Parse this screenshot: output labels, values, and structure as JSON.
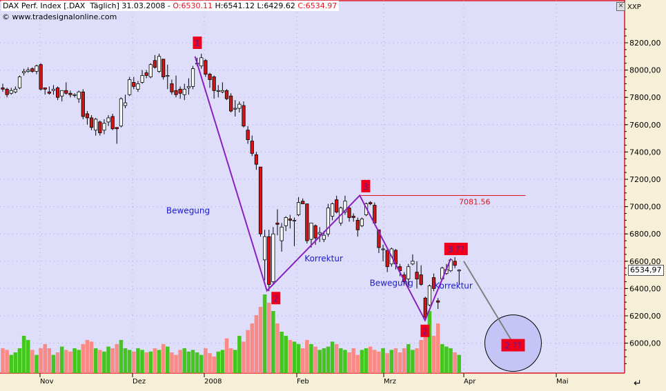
{
  "header": {
    "instrument": "DAX Perf. Index [.DAX  Täglich] 31.03.2008 - ",
    "open": "O:6530.11",
    "high_low": " H:6541.12 L:6429.62 ",
    "close": "C:6534.97",
    "copyright": "© www.tradesignalonline.com"
  },
  "axis_label": "XXP",
  "last_price_tag": "6534,97",
  "colors": {
    "plot_bg": "#dedefa",
    "axis_bg": "#f6f0d8",
    "up_candle": "#ffffff",
    "down_candle": "#d41414",
    "up_volume": "#44c51f",
    "down_volume": "#f98a86",
    "wave_line": "#8a1fc0",
    "resistance_line": "#e0141e",
    "label_box": "#f0001c"
  },
  "chart_data": {
    "type": "candlestick",
    "y_ticks": [
      "8200,00",
      "8000,00",
      "7800,00",
      "7600,00",
      "7400,00",
      "7200,00",
      "7000,00",
      "6800,00",
      "6600,00",
      "6400,00",
      "6200,00",
      "6000,00"
    ],
    "y_tick_values": [
      8200,
      8000,
      7800,
      7600,
      7400,
      7200,
      7000,
      6800,
      6600,
      6400,
      6200,
      6000
    ],
    "x_ticks": [
      {
        "label": "Nov",
        "date": "2007-11-01"
      },
      {
        "label": "Dez",
        "date": "2007-12-01"
      },
      {
        "label": "2008",
        "date": "2008-01-01"
      },
      {
        "label": "Feb",
        "date": "2008-02-01"
      },
      {
        "label": "Mrz",
        "date": "2008-03-01"
      },
      {
        "label": "Apr",
        "date": "2008-04-01"
      },
      {
        "label": "Mai",
        "date": "2008-05-01"
      }
    ],
    "last_date": "2008-03-31",
    "grid": true,
    "ohlc": [
      [
        7870,
        7900,
        7840,
        7860
      ],
      [
        7860,
        7870,
        7800,
        7820
      ],
      [
        7830,
        7870,
        7820,
        7850
      ],
      [
        7840,
        7880,
        7830,
        7860
      ],
      [
        7870,
        7960,
        7860,
        7950
      ],
      [
        7980,
        8010,
        7960,
        7990
      ],
      [
        7990,
        8020,
        7980,
        8000
      ],
      [
        8010,
        8020,
        7980,
        7990
      ],
      [
        7990,
        8040,
        7970,
        8030
      ],
      [
        8040,
        8050,
        7850,
        7860
      ],
      [
        7870,
        7870,
        7820,
        7860
      ],
      [
        7840,
        7880,
        7820,
        7830
      ],
      [
        7850,
        7890,
        7820,
        7860
      ],
      [
        7870,
        7880,
        7780,
        7800
      ],
      [
        7810,
        7850,
        7770,
        7850
      ],
      [
        7850,
        7910,
        7820,
        7830
      ],
      [
        7830,
        7850,
        7800,
        7820
      ],
      [
        7820,
        7830,
        7800,
        7820
      ],
      [
        7790,
        7850,
        7760,
        7840
      ],
      [
        7840,
        7860,
        7640,
        7660
      ],
      [
        7680,
        7700,
        7600,
        7650
      ],
      [
        7650,
        7670,
        7560,
        7580
      ],
      [
        7560,
        7650,
        7520,
        7640
      ],
      [
        7620,
        7630,
        7520,
        7540
      ],
      [
        7560,
        7640,
        7530,
        7610
      ],
      [
        7620,
        7670,
        7590,
        7650
      ],
      [
        7660,
        7680,
        7560,
        7570
      ],
      [
        7580,
        7580,
        7460,
        7570
      ],
      [
        7590,
        7800,
        7580,
        7790
      ],
      [
        7740,
        7820,
        7720,
        7760
      ],
      [
        7820,
        7950,
        7810,
        7930
      ],
      [
        7910,
        7950,
        7860,
        7880
      ],
      [
        7860,
        7920,
        7840,
        7900
      ],
      [
        7910,
        8000,
        7900,
        7960
      ],
      [
        7980,
        8000,
        7940,
        7960
      ],
      [
        7950,
        8050,
        7940,
        8040
      ],
      [
        8070,
        8110,
        8010,
        8020
      ],
      [
        7990,
        8120,
        7980,
        8100
      ],
      [
        8080,
        8080,
        7930,
        7950
      ],
      [
        7960,
        8040,
        7860,
        7960
      ],
      [
        7900,
        7930,
        7820,
        7840
      ],
      [
        7850,
        7960,
        7800,
        7820
      ],
      [
        7860,
        7880,
        7790,
        7830
      ],
      [
        7820,
        7900,
        7780,
        7860
      ],
      [
        7870,
        7940,
        7820,
        7880
      ],
      [
        7880,
        8030,
        7860,
        8010
      ],
      [
        8050,
        8090,
        8030,
        8050
      ],
      [
        8030,
        8120,
        8010,
        8090
      ],
      [
        8070,
        8080,
        7950,
        7970
      ],
      [
        7970,
        7980,
        7870,
        7930
      ],
      [
        7950,
        7960,
        7790,
        7850
      ],
      [
        7850,
        7890,
        7800,
        7850
      ],
      [
        7840,
        7910,
        7830,
        7850
      ],
      [
        7850,
        7860,
        7780,
        7790
      ],
      [
        7810,
        7830,
        7690,
        7700
      ],
      [
        7720,
        7780,
        7660,
        7720
      ],
      [
        7720,
        7770,
        7690,
        7750
      ],
      [
        7740,
        7770,
        7580,
        7590
      ],
      [
        7560,
        7590,
        7460,
        7490
      ],
      [
        7480,
        7520,
        7370,
        7390
      ],
      [
        7380,
        7400,
        7270,
        7310
      ],
      [
        7290,
        7290,
        6780,
        6800
      ],
      [
        6610,
        6830,
        6460,
        6780
      ],
      [
        6780,
        6830,
        6380,
        6430
      ],
      [
        6450,
        6850,
        6430,
        6800
      ],
      [
        6880,
        6980,
        6790,
        6870
      ],
      [
        6750,
        6880,
        6670,
        6850
      ],
      [
        6860,
        6930,
        6820,
        6920
      ],
      [
        6910,
        6940,
        6840,
        6900
      ],
      [
        6900,
        6920,
        6710,
        6900
      ],
      [
        6940,
        7070,
        6930,
        7030
      ],
      [
        7040,
        7060,
        7020,
        7020
      ],
      [
        7020,
        7020,
        6730,
        6750
      ],
      [
        6760,
        6880,
        6700,
        6880
      ],
      [
        6860,
        6870,
        6720,
        6770
      ],
      [
        6800,
        6850,
        6740,
        6810
      ],
      [
        6760,
        6820,
        6740,
        6790
      ],
      [
        6800,
        7020,
        6780,
        6990
      ],
      [
        6930,
        7030,
        6900,
        7020
      ],
      [
        7050,
        7080,
        6950,
        6960
      ],
      [
        6880,
        7000,
        6860,
        6990
      ],
      [
        6960,
        7080,
        6940,
        7040
      ],
      [
        6990,
        7000,
        6890,
        6920
      ],
      [
        6930,
        6950,
        6890,
        6920
      ],
      [
        6900,
        6920,
        6780,
        6830
      ],
      [
        6860,
        6920,
        6850,
        6910
      ],
      [
        6940,
        7030,
        6930,
        7020
      ],
      [
        7030,
        7040,
        7010,
        7020
      ],
      [
        7010,
        7030,
        6870,
        6880
      ],
      [
        6830,
        6830,
        6660,
        6700
      ],
      [
        6690,
        6720,
        6600,
        6690
      ],
      [
        6680,
        6680,
        6520,
        6560
      ],
      [
        6580,
        6700,
        6560,
        6690
      ],
      [
        6680,
        6690,
        6540,
        6580
      ],
      [
        6560,
        6580,
        6490,
        6530
      ],
      [
        6500,
        6520,
        6430,
        6450
      ],
      [
        6470,
        6580,
        6410,
        6560
      ],
      [
        6580,
        6650,
        6570,
        6600
      ],
      [
        6520,
        6600,
        6400,
        6470
      ],
      [
        6500,
        6570,
        6420,
        6430
      ],
      [
        6330,
        6340,
        6170,
        6190
      ],
      [
        6280,
        6430,
        6270,
        6420
      ],
      [
        6480,
        6510,
        6380,
        6400
      ],
      [
        6310,
        6330,
        6250,
        6300
      ],
      [
        6470,
        6560,
        6460,
        6550
      ],
      [
        6510,
        6580,
        6500,
        6540
      ],
      [
        6530,
        6620,
        6520,
        6610
      ],
      [
        6600,
        6630,
        6550,
        6570
      ],
      [
        6530,
        6541,
        6430,
        6535
      ]
    ],
    "volume_relative": [
      30,
      28,
      22,
      25,
      30,
      45,
      40,
      28,
      22,
      30,
      35,
      30,
      22,
      25,
      32,
      28,
      26,
      30,
      28,
      35,
      40,
      38,
      30,
      28,
      26,
      32,
      30,
      35,
      40,
      30,
      28,
      26,
      30,
      28,
      25,
      26,
      30,
      28,
      35,
      32,
      25,
      22,
      28,
      30,
      26,
      28,
      25,
      22,
      30,
      24,
      20,
      26,
      28,
      42,
      30,
      28,
      45,
      38,
      52,
      60,
      70,
      80,
      95,
      85,
      75,
      60,
      50,
      45,
      40,
      38,
      35,
      30,
      40,
      35,
      32,
      28,
      30,
      32,
      38,
      35,
      30,
      28,
      25,
      30,
      22,
      28,
      30,
      32,
      28,
      26,
      30,
      24,
      28,
      30,
      25,
      30,
      35,
      28,
      30,
      40,
      55,
      75,
      45,
      60,
      35,
      32,
      30,
      25,
      22
    ],
    "wave_points": [
      {
        "date": "2007-12-28",
        "price": 8100
      },
      {
        "date": "2008-01-22",
        "price": 6384
      },
      {
        "date": "2008-02-22",
        "price": 7081.56
      },
      {
        "date": "2008-03-17",
        "price": 6167
      },
      {
        "date": "2008-03-27",
        "price": 6620
      }
    ],
    "projection_line": [
      {
        "date": "2008-04-01",
        "price": 6600
      },
      {
        "date": "2008-04-17",
        "price": 6000
      }
    ],
    "projection_circle": {
      "date": "2008-04-17",
      "price": 6000
    },
    "resistance": {
      "price": 7081.56,
      "label": "7081.56",
      "from": "2008-02-22",
      "to": "2008-04-21"
    },
    "labels": [
      {
        "text": "1",
        "date": "2007-12-29",
        "price": 8200,
        "boxed": true
      },
      {
        "text": "2",
        "date": "2008-01-25",
        "price": 6330,
        "boxed": true
      },
      {
        "text": "3",
        "date": "2008-02-24",
        "price": 7150,
        "boxed": true
      },
      {
        "text": "2",
        "date": "2008-03-17",
        "price": 6090,
        "boxed": true
      },
      {
        "text": "3 ??",
        "date": "2008-03-29",
        "price": 6690,
        "boxed": true
      },
      {
        "text": "2 ??",
        "date": "2008-04-17",
        "price": 5985,
        "boxed": true
      },
      {
        "text": "Bewegung",
        "date": "2007-12-25",
        "price": 6950,
        "boxed": false
      },
      {
        "text": "Korrektur",
        "date": "2008-02-10",
        "price": 6600,
        "boxed": false
      },
      {
        "text": "Bewegung",
        "date": "2008-03-04",
        "price": 6420,
        "boxed": false
      },
      {
        "text": "Korrektur",
        "date": "2008-03-28",
        "price": 6400,
        "boxed": false
      }
    ]
  }
}
